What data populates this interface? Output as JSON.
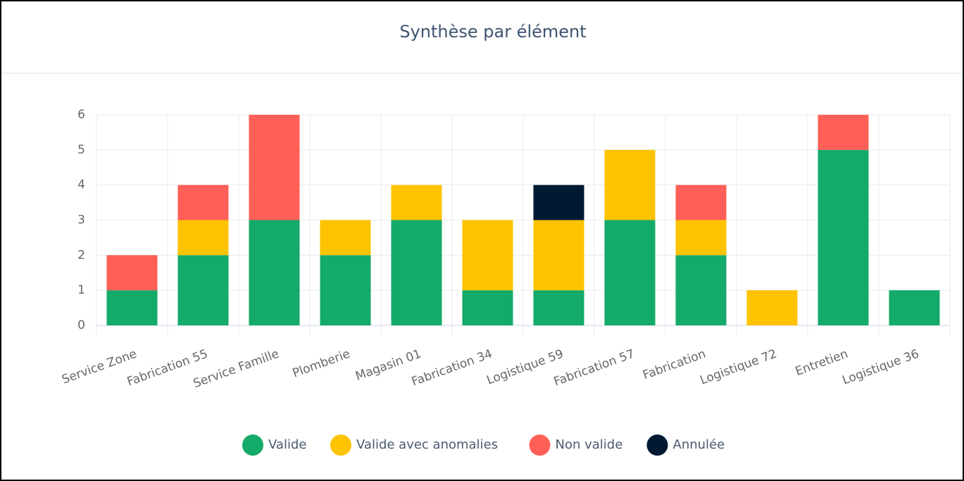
{
  "chart_data": {
    "type": "stacked_bar",
    "title": "Synthèse par élément",
    "categories": [
      "Service Zone",
      "Fabrication 55",
      "Service Famille",
      "Plomberie",
      "Magasin 01",
      "Fabrication 34",
      "Logistique 59",
      "Fabrication 57",
      "Fabrication",
      "Logistique 72",
      "Entretien",
      "Logistique 36"
    ],
    "series": [
      {
        "name": "Valide",
        "color": "#14aa6a",
        "values": [
          1,
          2,
          3,
          2,
          3,
          1,
          1,
          3,
          2,
          0,
          5,
          1
        ]
      },
      {
        "name": "Valide avec anomalies",
        "color": "#fdc300",
        "values": [
          0,
          1,
          0,
          1,
          1,
          2,
          2,
          2,
          1,
          1,
          0,
          0
        ]
      },
      {
        "name": "Non valide",
        "color": "#ff5f57",
        "values": [
          1,
          1,
          3,
          0,
          0,
          0,
          0,
          0,
          1,
          0,
          1,
          0
        ]
      },
      {
        "name": "Annulée",
        "color": "#001a33",
        "values": [
          0,
          0,
          0,
          0,
          0,
          0,
          1,
          0,
          0,
          0,
          0,
          0
        ]
      }
    ],
    "ylim": [
      0,
      6
    ],
    "yticks": [
      0,
      1,
      2,
      3,
      4,
      5,
      6
    ],
    "grid": true,
    "legend": "bottom"
  }
}
